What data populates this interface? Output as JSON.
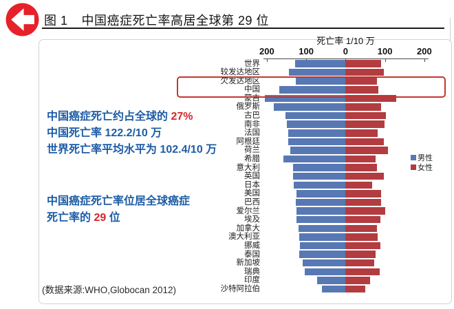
{
  "header": {
    "figure_label": "图 1",
    "title": "中国癌症死亡率高居全球第 29 位"
  },
  "annotations": {
    "line1_prefix": "中国癌症死亡约占全球的 ",
    "line1_highlight": "27%",
    "line2": "中国死亡率 122.2/10 万",
    "line3": "世界死亡率平均水平为 102.4/10 万",
    "line4": "中国癌症死亡率位居全球癌症",
    "line5_prefix": "死亡率的 ",
    "line5_highlight": "29",
    "line5_suffix": " 位",
    "source": "(数据来源:WHO,Globocan 2012)"
  },
  "colors": {
    "male_bar": "#5878b4",
    "female_bar": "#b23c40",
    "annotation_blue": "#1d5ca6",
    "annotation_red": "#d6232a",
    "highlight_box_red": "#c4352e",
    "back_icon_red": "#e62129"
  },
  "chart_data": {
    "type": "bar",
    "orientation": "diverging-horizontal",
    "axis_title": "死亡率 1/10 万",
    "axis_ticks": [
      "200",
      "100",
      "0",
      "100",
      "200"
    ],
    "axis_range_per_side": 200,
    "legend_position": "right",
    "highlighted_category": "中国",
    "categories": [
      "世界",
      "较发达地区",
      "欠发达地区",
      "中国",
      "蒙古",
      "俄罗斯",
      "古巴",
      "南非",
      "法国",
      "阿根廷",
      "荷兰",
      "希腊",
      "意大利",
      "英国",
      "日本",
      "美国",
      "巴西",
      "爱尔兰",
      "埃及",
      "加拿大",
      "澳大利亚",
      "挪威",
      "泰国",
      "新加坡",
      "瑞典",
      "印度",
      "沙特阿拉伯"
    ],
    "series": [
      {
        "name": "男性",
        "color": "#5878b4",
        "direction": "left",
        "values": [
          128,
          144,
          126,
          169,
          205,
          183,
          152,
          150,
          146,
          145,
          140,
          158,
          134,
          133,
          131,
          124,
          126,
          125,
          124,
          119,
          117,
          116,
          117,
          109,
          104,
          72,
          60
        ]
      },
      {
        "name": "女性",
        "color": "#b23c40",
        "direction": "right",
        "values": [
          91,
          98,
          79,
          83,
          128,
          91,
          102,
          99,
          81,
          97,
          107,
          77,
          80,
          98,
          68,
          90,
          90,
          100,
          88,
          79,
          82,
          88,
          76,
          72,
          86,
          62,
          50
        ]
      }
    ]
  }
}
